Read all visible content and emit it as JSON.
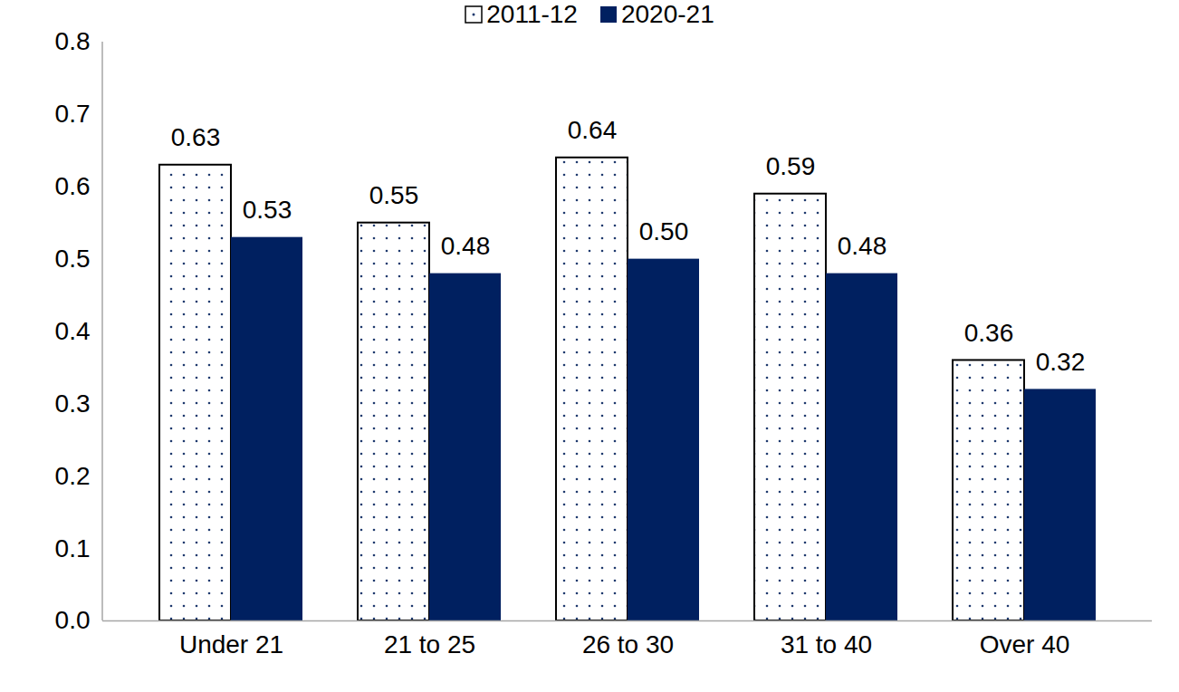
{
  "chart_data": {
    "type": "bar",
    "categories": [
      "Under 21",
      "21 to 25",
      "26 to 30",
      "31 to 40",
      "Over 40"
    ],
    "series": [
      {
        "name": "2011-12",
        "color": "#ffffff",
        "values": [
          0.63,
          0.55,
          0.64,
          0.59,
          0.36
        ],
        "value_labels": [
          "0.63",
          "0.55",
          "0.64",
          "0.59",
          "0.36"
        ]
      },
      {
        "name": "2020-21",
        "color": "#002060",
        "values": [
          0.53,
          0.48,
          0.5,
          0.48,
          0.32
        ],
        "value_labels": [
          "0.53",
          "0.48",
          "0.50",
          "0.48",
          "0.32"
        ]
      }
    ],
    "ylim": [
      0,
      0.8
    ],
    "yticks": [
      {
        "value": 0,
        "label": "0.0"
      },
      0.1,
      0.2,
      0.3,
      0.4,
      0.5,
      0.6,
      0.7,
      0.8
    ],
    "grid": false,
    "legend": "top",
    "data_labels": true
  }
}
